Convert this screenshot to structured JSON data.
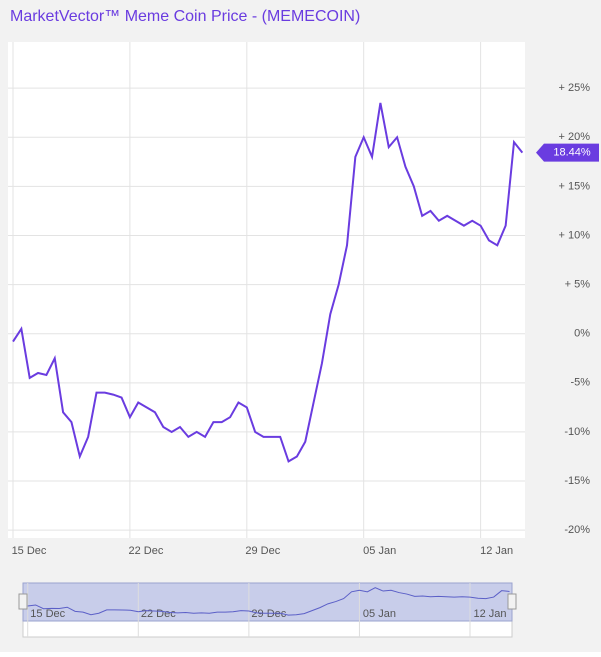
{
  "chart_data": {
    "type": "line",
    "title": "MarketVector™ Meme Coin Price - (MEMECOIN)",
    "categories": [
      "15 Dec",
      null,
      null,
      null,
      null,
      null,
      null,
      null,
      null,
      null,
      null,
      null,
      null,
      null,
      "22 Dec",
      null,
      null,
      null,
      null,
      null,
      null,
      null,
      null,
      null,
      null,
      null,
      null,
      null,
      "29 Dec",
      null,
      null,
      null,
      null,
      null,
      null,
      null,
      null,
      null,
      null,
      null,
      null,
      null,
      "05 Jan",
      null,
      null,
      null,
      null,
      null,
      null,
      null,
      null,
      null,
      null,
      null,
      null,
      null,
      "12 Jan",
      null,
      null,
      null,
      null,
      null
    ],
    "values": [
      -0.8,
      0.5,
      -4.5,
      -4,
      -4.2,
      -2.5,
      -8,
      -9,
      -12.5,
      -10.5,
      -6,
      -6,
      -6.2,
      -6.5,
      -8.5,
      -7,
      -7.5,
      -8,
      -9.5,
      -10,
      -9.5,
      -10.5,
      -10,
      -10.5,
      -9,
      -9,
      -8.5,
      -7,
      -7.5,
      -10,
      -10.5,
      -10.5,
      -10.5,
      -13,
      -12.5,
      -11,
      -7,
      -3,
      2,
      5,
      9,
      18,
      20,
      18,
      23.5,
      19,
      20,
      17,
      15,
      12,
      12.5,
      11.5,
      12,
      11.5,
      11,
      11.5,
      11,
      9.5,
      9,
      11,
      19.5,
      18.44
    ],
    "color": "#6a3ce0",
    "ylim": [
      -20.8,
      29.7
    ],
    "yticks": [
      {
        "value": -20,
        "label": "-20%"
      },
      {
        "value": -15,
        "label": "-15%"
      },
      {
        "value": -10,
        "label": "-10%"
      },
      {
        "value": -5,
        "label": "-5%"
      },
      {
        "value": 0,
        "label": "0%"
      },
      {
        "value": 5,
        "label": "+ 5%"
      },
      {
        "value": 10,
        "label": "+ 10%"
      },
      {
        "value": 15,
        "label": "+ 15%"
      },
      {
        "value": 20,
        "label": "+ 20%"
      },
      {
        "value": 25,
        "label": "+ 25%"
      }
    ],
    "grid": true,
    "current_value": 18.44,
    "current_label": "18.44%"
  }
}
